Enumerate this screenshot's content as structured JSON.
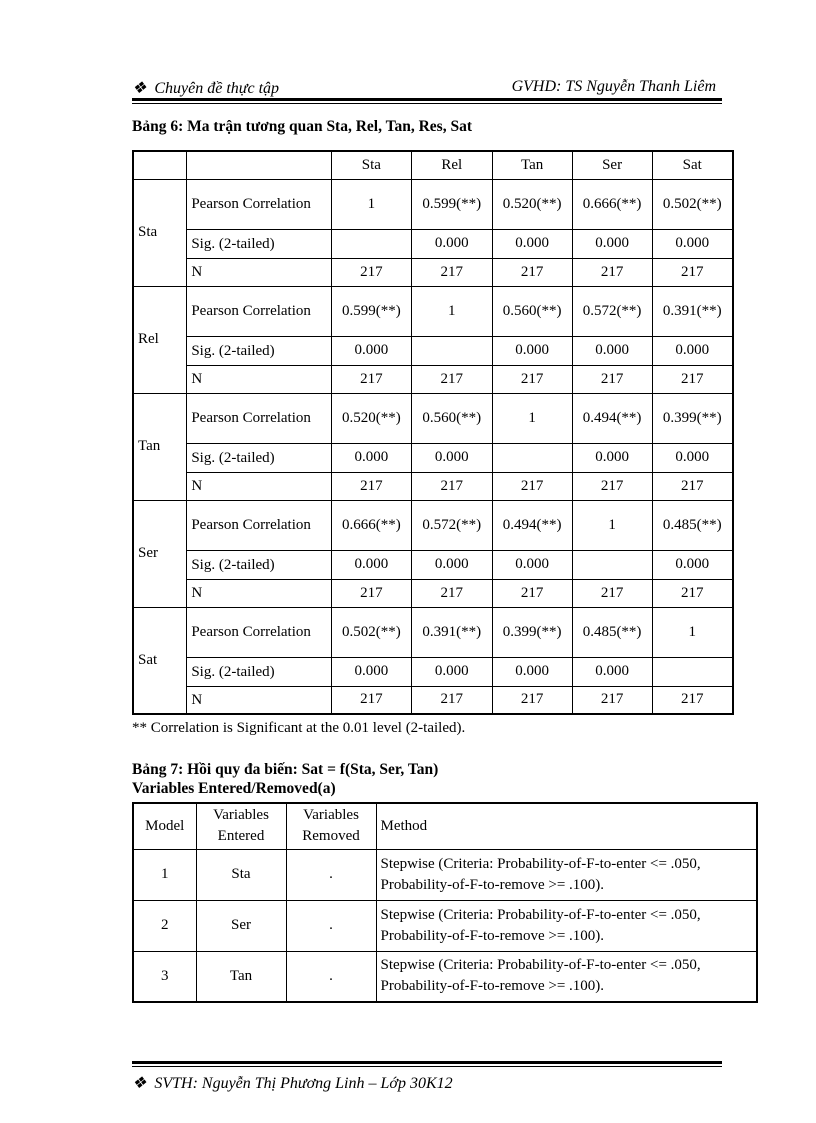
{
  "header": {
    "left": "Chuyên đề thực tập",
    "right": "GVHD: TS Nguyễn Thanh Liêm",
    "bullet_icon": "diamond-bullet"
  },
  "table6": {
    "caption": "Bảng 6: Ma trận tương quan Sta, Rel, Tan,  Res, Sat",
    "columns": [
      "Sta",
      "Rel",
      "Tan",
      "Ser",
      "Sat"
    ],
    "row_labels": [
      "Pearson Correlation",
      "Sig. (2-tailed)",
      "N"
    ],
    "groups": [
      {
        "name": "Sta",
        "pearson": [
          "1",
          "0.599(**)",
          "0.520(**)",
          "0.666(**)",
          "0.502(**)"
        ],
        "sig": [
          "",
          "0.000",
          "0.000",
          "0.000",
          "0.000"
        ],
        "n": [
          "217",
          "217",
          "217",
          "217",
          "217"
        ]
      },
      {
        "name": "Rel",
        "pearson": [
          "0.599(**)",
          "1",
          "0.560(**)",
          "0.572(**)",
          "0.391(**)"
        ],
        "sig": [
          "0.000",
          "",
          "0.000",
          "0.000",
          "0.000"
        ],
        "n": [
          "217",
          "217",
          "217",
          "217",
          "217"
        ]
      },
      {
        "name": "Tan",
        "pearson": [
          "0.520(**)",
          "0.560(**)",
          "1",
          "0.494(**)",
          "0.399(**)"
        ],
        "sig": [
          "0.000",
          "0.000",
          "",
          "0.000",
          "0.000"
        ],
        "n": [
          "217",
          "217",
          "217",
          "217",
          "217"
        ]
      },
      {
        "name": "Ser",
        "pearson": [
          "0.666(**)",
          "0.572(**)",
          "0.494(**)",
          "1",
          "0.485(**)"
        ],
        "sig": [
          "0.000",
          "0.000",
          "0.000",
          "",
          "0.000"
        ],
        "n": [
          "217",
          "217",
          "217",
          "217",
          "217"
        ]
      },
      {
        "name": "Sat",
        "pearson": [
          "0.502(**)",
          "0.391(**)",
          "0.399(**)",
          "0.485(**)",
          "1"
        ],
        "sig": [
          "0.000",
          "0.000",
          "0.000",
          "0.000",
          ""
        ],
        "n": [
          "217",
          "217",
          "217",
          "217",
          "217"
        ]
      }
    ],
    "note": "**  Correlation is Significant at the 0.01 level (2-tailed)."
  },
  "table7": {
    "caption": "Bảng 7: Hồi quy  đa biến: Sat = f(Sta, Ser, Tan)",
    "subcaption": "Variables Entered/Removed(a)",
    "headers": [
      "Model",
      "Variables Entered",
      "Variables Removed",
      "Method"
    ],
    "rows": [
      {
        "model": "1",
        "entered": "Sta",
        "removed": ".",
        "method": [
          "Stepwise (Criteria: Probability-of-F-to-enter <= .050,",
          "Probability-of-F-to-remove >= .100)."
        ]
      },
      {
        "model": "2",
        "entered": "Ser",
        "removed": ".",
        "method": [
          "Stepwise (Criteria: Probability-of-F-to-enter <= .050,",
          "Probability-of-F-to-remove >= .100)."
        ]
      },
      {
        "model": "3",
        "entered": "Tan",
        "removed": ".",
        "method": [
          "Stepwise (Criteria: Probability-of-F-to-enter <= .050,",
          "Probability-of-F-to-remove >= .100)."
        ]
      }
    ]
  },
  "footer": {
    "text": "SVTH: Nguyễn Thị Phương Linh – Lớp 30K12"
  }
}
